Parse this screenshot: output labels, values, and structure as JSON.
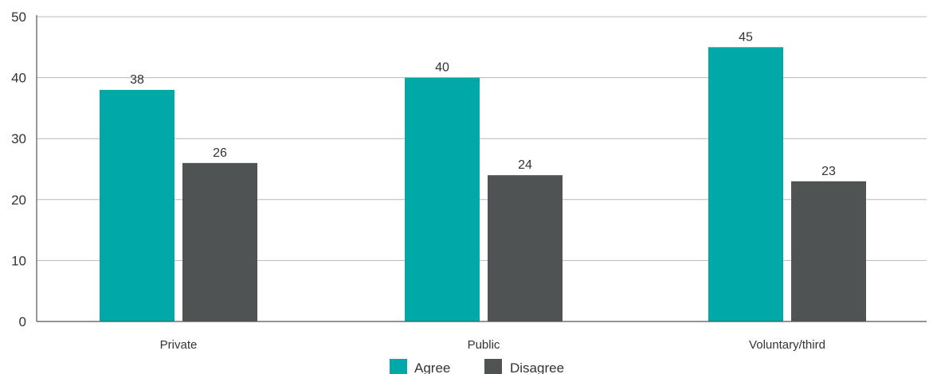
{
  "chart_data": {
    "type": "bar",
    "title": "",
    "xlabel": "",
    "ylabel": "",
    "categories": [
      "Private",
      "Public",
      "Voluntary/third"
    ],
    "series": [
      {
        "name": "Agree",
        "values": [
          38,
          40,
          45
        ],
        "color": "#00a8a8"
      },
      {
        "name": "Disagree",
        "values": [
          26,
          24,
          23
        ],
        "color": "#505354"
      }
    ],
    "ylim": [
      0,
      50
    ],
    "yticks": [
      0,
      10,
      20,
      30,
      40,
      50
    ],
    "grid": true,
    "legend_position": "bottom-center",
    "data_labels": true
  }
}
